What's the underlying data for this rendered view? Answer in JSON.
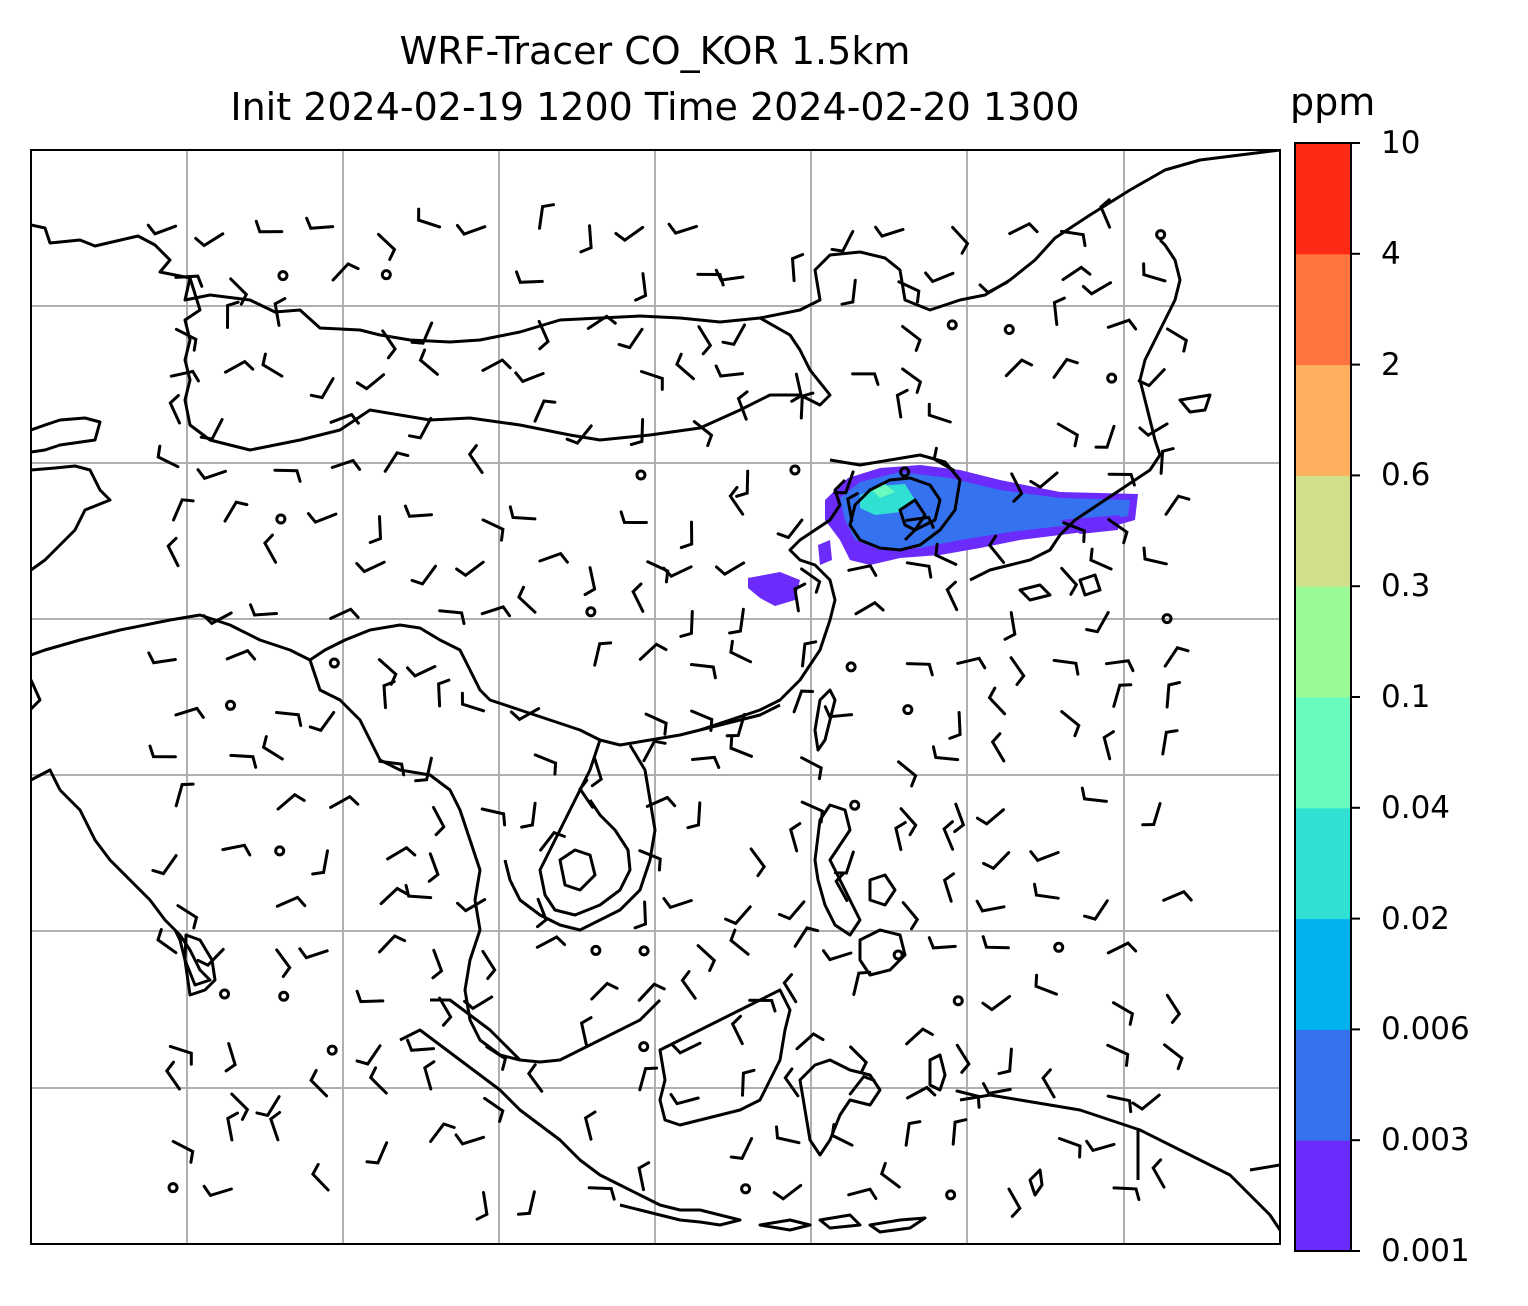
{
  "title": {
    "line1": "WRF-Tracer CO_KOR 1.5km",
    "line2": "Init 2024-02-19 1200 Time 2024-02-20 1300"
  },
  "colorbar": {
    "unit": "ppm",
    "levels": [
      "0.001",
      "0.003",
      "0.006",
      "0.02",
      "0.04",
      "0.1",
      "0.3",
      "0.6",
      "2",
      "4",
      "10"
    ],
    "colors": [
      "#6a2bfb",
      "#3572f0",
      "#00b3ee",
      "#30e0d2",
      "#68fbbd",
      "#9afa98",
      "#d0e08a",
      "#ffb05f",
      "#ff733e",
      "#ff2a16"
    ]
  },
  "map": {
    "gridlines": true,
    "coastline_color": "#000000",
    "grid_color": "#b0b0b0"
  }
}
